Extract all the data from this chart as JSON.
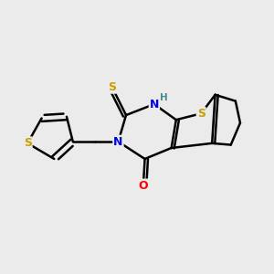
{
  "background_color": "#ebebeb",
  "atom_colors": {
    "S": "#c8a000",
    "N": "#0000ee",
    "O": "#ff0000",
    "C": "#000000",
    "H": "#4a8a8a"
  },
  "bond_color": "#000000",
  "bond_width": 1.8,
  "figsize": [
    3.0,
    3.0
  ],
  "dpi": 100
}
